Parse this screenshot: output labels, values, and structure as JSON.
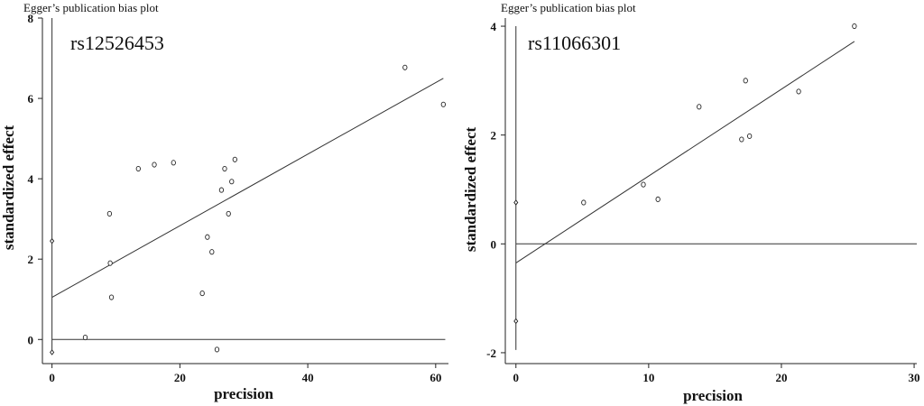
{
  "chart_data": [
    {
      "type": "scatter",
      "title": "Egger’s publication bias plot",
      "annotation": "rs12526453",
      "xlabel": "precision",
      "ylabel": "standardized effect",
      "xlim": [
        -1.5,
        62
      ],
      "ylim": [
        -0.6,
        8.0
      ],
      "xticks": [
        0,
        20,
        40,
        60
      ],
      "yticks": [
        0,
        2,
        4,
        6,
        8
      ],
      "regression_line": {
        "x": [
          0,
          61.2
        ],
        "y": [
          1.05,
          6.5
        ]
      },
      "zero_line_y": 0,
      "ci_segment": {
        "x": 0,
        "y": [
          -0.3,
          8.0
        ]
      },
      "ci_markers": [
        {
          "x": 0,
          "y": 2.45
        },
        {
          "x": 0,
          "y": -0.32
        }
      ],
      "points": [
        {
          "x": 5.2,
          "y": 0.05
        },
        {
          "x": 9.0,
          "y": 3.13
        },
        {
          "x": 9.1,
          "y": 1.9
        },
        {
          "x": 9.3,
          "y": 1.05
        },
        {
          "x": 13.5,
          "y": 4.25
        },
        {
          "x": 16.0,
          "y": 4.35
        },
        {
          "x": 19.0,
          "y": 4.4
        },
        {
          "x": 23.5,
          "y": 1.15
        },
        {
          "x": 24.3,
          "y": 2.55
        },
        {
          "x": 25.0,
          "y": 2.18
        },
        {
          "x": 25.8,
          "y": -0.25
        },
        {
          "x": 26.5,
          "y": 3.72
        },
        {
          "x": 27.0,
          "y": 4.25
        },
        {
          "x": 27.6,
          "y": 3.13
        },
        {
          "x": 28.1,
          "y": 3.93
        },
        {
          "x": 28.6,
          "y": 4.48
        },
        {
          "x": 55.2,
          "y": 6.77
        },
        {
          "x": 61.2,
          "y": 5.85
        }
      ]
    },
    {
      "type": "scatter",
      "title": "Egger’s publication bias plot",
      "annotation": "rs11066301",
      "xlabel": "precision",
      "ylabel": "standardized effect",
      "xlim": [
        -0.8,
        30.2
      ],
      "ylim": [
        -2.2,
        4.15
      ],
      "xticks": [
        0,
        10,
        20,
        30
      ],
      "yticks": [
        -2,
        0,
        2,
        4
      ],
      "regression_line": {
        "x": [
          0,
          25.5
        ],
        "y": [
          -0.35,
          3.72
        ]
      },
      "zero_line_y": 0,
      "ci_segment": {
        "x": 0,
        "y": [
          -1.95,
          4.0
        ]
      },
      "ci_markers": [
        {
          "x": 0,
          "y": 0.76
        },
        {
          "x": 0,
          "y": -1.42
        }
      ],
      "points": [
        {
          "x": 5.1,
          "y": 0.76
        },
        {
          "x": 9.6,
          "y": 1.09
        },
        {
          "x": 10.7,
          "y": 0.82
        },
        {
          "x": 13.8,
          "y": 2.52
        },
        {
          "x": 17.0,
          "y": 1.92
        },
        {
          "x": 17.3,
          "y": 3.0
        },
        {
          "x": 17.6,
          "y": 1.98
        },
        {
          "x": 21.3,
          "y": 2.8
        },
        {
          "x": 25.5,
          "y": 4.0
        }
      ]
    }
  ]
}
